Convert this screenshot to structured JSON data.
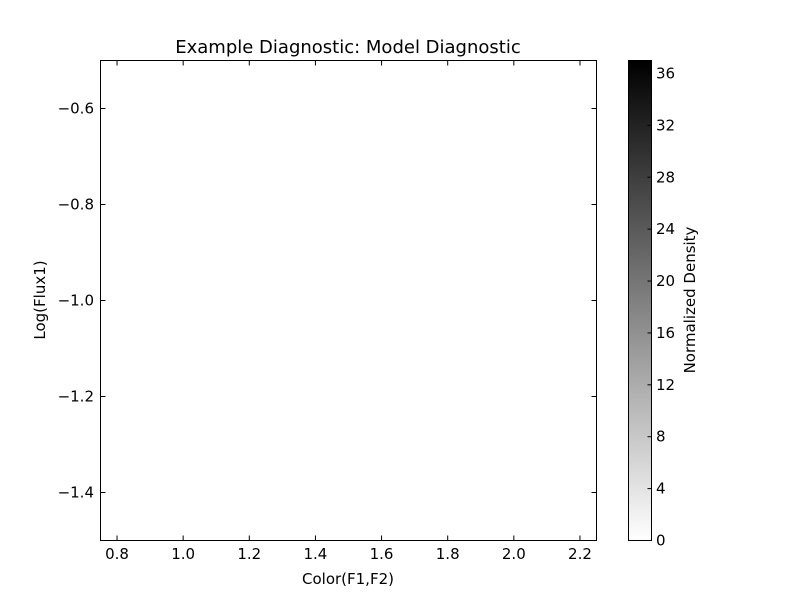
{
  "chart_data": {
    "type": "heatmap",
    "title": "Example Diagnostic: Model Diagnostic",
    "xlabel": "Color(F1,F2)",
    "ylabel": "Log(Flux1)",
    "xlim": [
      0.75,
      2.25
    ],
    "ylim": [
      -1.5,
      -0.5
    ],
    "xticks": [
      0.8,
      1.0,
      1.2,
      1.4,
      1.6,
      1.8,
      2.0,
      2.2
    ],
    "xtick_labels": [
      "0.8",
      "1.0",
      "1.2",
      "1.4",
      "1.6",
      "1.8",
      "2.0",
      "2.2"
    ],
    "yticks": [
      -0.6,
      -0.8,
      -1.0,
      -1.2,
      -1.4
    ],
    "ytick_labels": [
      "−0.6",
      "−0.8",
      "−1.0",
      "−1.2",
      "−1.4"
    ],
    "grid": false,
    "values": [],
    "colorbar": {
      "label": "Normalized Density",
      "range": [
        0,
        37
      ],
      "ticks": [
        0,
        4,
        8,
        12,
        16,
        20,
        24,
        28,
        32,
        36
      ],
      "tick_labels": [
        "0",
        "4",
        "8",
        "12",
        "16",
        "20",
        "24",
        "28",
        "32",
        "36"
      ],
      "colormap": "gray_r",
      "color_low": "#ffffff",
      "color_high": "#000000"
    }
  }
}
